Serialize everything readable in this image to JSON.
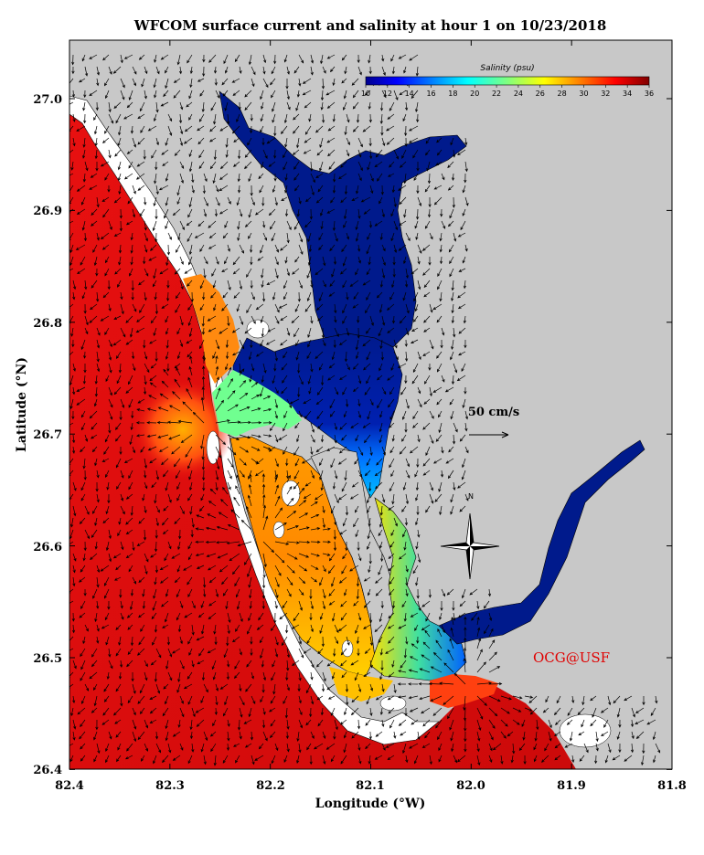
{
  "title": "WFCOM surface current and salinity at hour 1 on 10/23/2018",
  "x_axis": {
    "label": "Longitude (°W)",
    "ticks": [
      "82.4",
      "82.3",
      "82.2",
      "82.1",
      "82.0",
      "81.9",
      "81.8"
    ]
  },
  "y_axis": {
    "label": "Latitude (°N)",
    "ticks": [
      "27.0",
      "26.9",
      "26.8",
      "26.7",
      "26.6",
      "26.5",
      "26.4"
    ]
  },
  "colorbar": {
    "title": "Salinity (psu)",
    "ticks": [
      "10",
      "12",
      "14",
      "16",
      "18",
      "20",
      "22",
      "24",
      "26",
      "28",
      "30",
      "32",
      "34",
      "36"
    ],
    "range": [
      10,
      36
    ],
    "colormap": "jet"
  },
  "scale_arrow": {
    "label": "50 cm/s",
    "speed_cm_s": 50
  },
  "compass": {
    "label": "N"
  },
  "credit": "OCG@USF",
  "colors": {
    "land": "#c8c8c8",
    "gulf_high_salinity": "#e01010",
    "fresh": "#001a8c",
    "credit": "#e00000"
  }
}
